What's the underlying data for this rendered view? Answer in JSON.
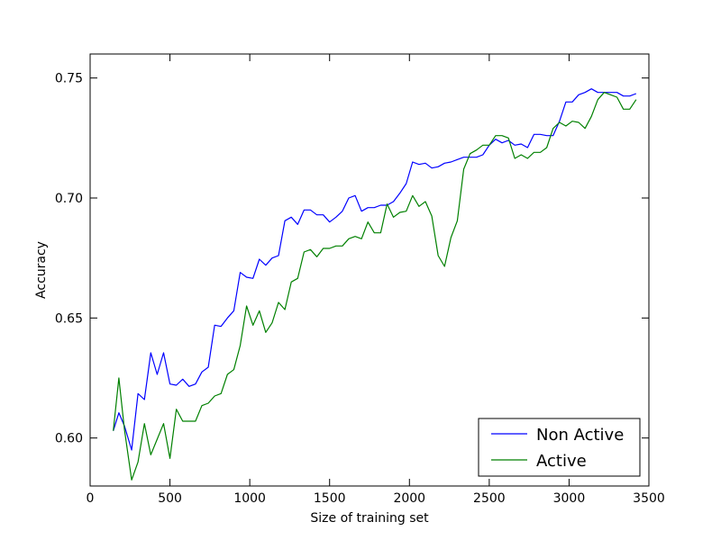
{
  "chart_data": {
    "type": "line",
    "title": "",
    "xlabel": "Size of training set",
    "ylabel": "Accuracy",
    "xlim": [
      0,
      3500
    ],
    "ylim": [
      0.58,
      0.76
    ],
    "xticks": [
      0,
      500,
      1000,
      1500,
      2000,
      2500,
      3000,
      3500
    ],
    "yticks": [
      0.6,
      0.65,
      0.7,
      0.75
    ],
    "xtick_labels": [
      "0",
      "500",
      "1000",
      "1500",
      "2000",
      "2500",
      "3000",
      "3500"
    ],
    "ytick_labels": [
      "0.60",
      "0.65",
      "0.70",
      "0.75"
    ],
    "grid": false,
    "legend": {
      "position": "lower-right"
    },
    "series": [
      {
        "name": "Non Active",
        "color": "#0000ff",
        "x": [
          145,
          180,
          215,
          260,
          300,
          340,
          380,
          420,
          460,
          500,
          540,
          580,
          620,
          660,
          700,
          740,
          780,
          820,
          860,
          900,
          940,
          980,
          1020,
          1060,
          1100,
          1140,
          1180,
          1220,
          1260,
          1300,
          1340,
          1380,
          1420,
          1460,
          1500,
          1540,
          1580,
          1620,
          1660,
          1700,
          1740,
          1780,
          1820,
          1860,
          1900,
          1940,
          1980,
          2020,
          2060,
          2100,
          2140,
          2180,
          2220,
          2260,
          2300,
          2340,
          2380,
          2420,
          2460,
          2500,
          2540,
          2580,
          2620,
          2660,
          2700,
          2740,
          2780,
          2820,
          2860,
          2900,
          2940,
          2980,
          3020,
          3060,
          3100,
          3140,
          3180,
          3220,
          3260,
          3300,
          3340,
          3380,
          3420
        ],
        "values": [
          0.603,
          0.6105,
          0.605,
          0.595,
          0.6185,
          0.616,
          0.6355,
          0.6265,
          0.6355,
          0.6225,
          0.622,
          0.6245,
          0.6215,
          0.6225,
          0.6275,
          0.6295,
          0.647,
          0.6465,
          0.65,
          0.653,
          0.669,
          0.667,
          0.6665,
          0.6745,
          0.672,
          0.675,
          0.676,
          0.6905,
          0.692,
          0.689,
          0.695,
          0.695,
          0.693,
          0.693,
          0.69,
          0.692,
          0.6945,
          0.7,
          0.701,
          0.6945,
          0.696,
          0.696,
          0.697,
          0.697,
          0.6985,
          0.702,
          0.706,
          0.715,
          0.714,
          0.7145,
          0.7125,
          0.713,
          0.7145,
          0.715,
          0.716,
          0.717,
          0.717,
          0.717,
          0.718,
          0.722,
          0.7245,
          0.723,
          0.724,
          0.722,
          0.7225,
          0.721,
          0.7265,
          0.7265,
          0.726,
          0.726,
          0.732,
          0.74,
          0.74,
          0.743,
          0.744,
          0.7455,
          0.744,
          0.744,
          0.744,
          0.744,
          0.7425,
          0.7425,
          0.7435
        ]
      },
      {
        "name": "Active",
        "color": "#008000",
        "x": [
          145,
          180,
          215,
          260,
          300,
          340,
          380,
          420,
          460,
          500,
          540,
          580,
          620,
          660,
          700,
          740,
          780,
          820,
          860,
          900,
          940,
          980,
          1020,
          1060,
          1100,
          1140,
          1180,
          1220,
          1260,
          1300,
          1340,
          1380,
          1420,
          1460,
          1500,
          1540,
          1580,
          1620,
          1660,
          1700,
          1740,
          1780,
          1820,
          1860,
          1900,
          1940,
          1980,
          2020,
          2060,
          2100,
          2140,
          2180,
          2220,
          2260,
          2300,
          2340,
          2380,
          2420,
          2460,
          2500,
          2540,
          2580,
          2620,
          2660,
          2700,
          2740,
          2780,
          2820,
          2860,
          2900,
          2940,
          2980,
          3020,
          3060,
          3100,
          3140,
          3180,
          3220,
          3260,
          3300,
          3340,
          3380,
          3420
        ],
        "values": [
          0.603,
          0.625,
          0.6035,
          0.5825,
          0.59,
          0.606,
          0.593,
          0.5995,
          0.606,
          0.5915,
          0.612,
          0.607,
          0.607,
          0.607,
          0.6135,
          0.6145,
          0.6175,
          0.6185,
          0.6265,
          0.6285,
          0.6385,
          0.655,
          0.647,
          0.653,
          0.644,
          0.648,
          0.6565,
          0.6535,
          0.665,
          0.6665,
          0.6775,
          0.6785,
          0.6755,
          0.679,
          0.679,
          0.68,
          0.68,
          0.683,
          0.684,
          0.683,
          0.69,
          0.6855,
          0.6855,
          0.6975,
          0.692,
          0.694,
          0.6945,
          0.701,
          0.6965,
          0.6985,
          0.6925,
          0.676,
          0.6715,
          0.6835,
          0.6905,
          0.712,
          0.7185,
          0.72,
          0.722,
          0.722,
          0.726,
          0.726,
          0.725,
          0.7165,
          0.718,
          0.7165,
          0.719,
          0.719,
          0.721,
          0.729,
          0.7315,
          0.73,
          0.732,
          0.7315,
          0.729,
          0.734,
          0.741,
          0.744,
          0.743,
          0.742,
          0.737,
          0.737,
          0.741
        ]
      }
    ]
  }
}
